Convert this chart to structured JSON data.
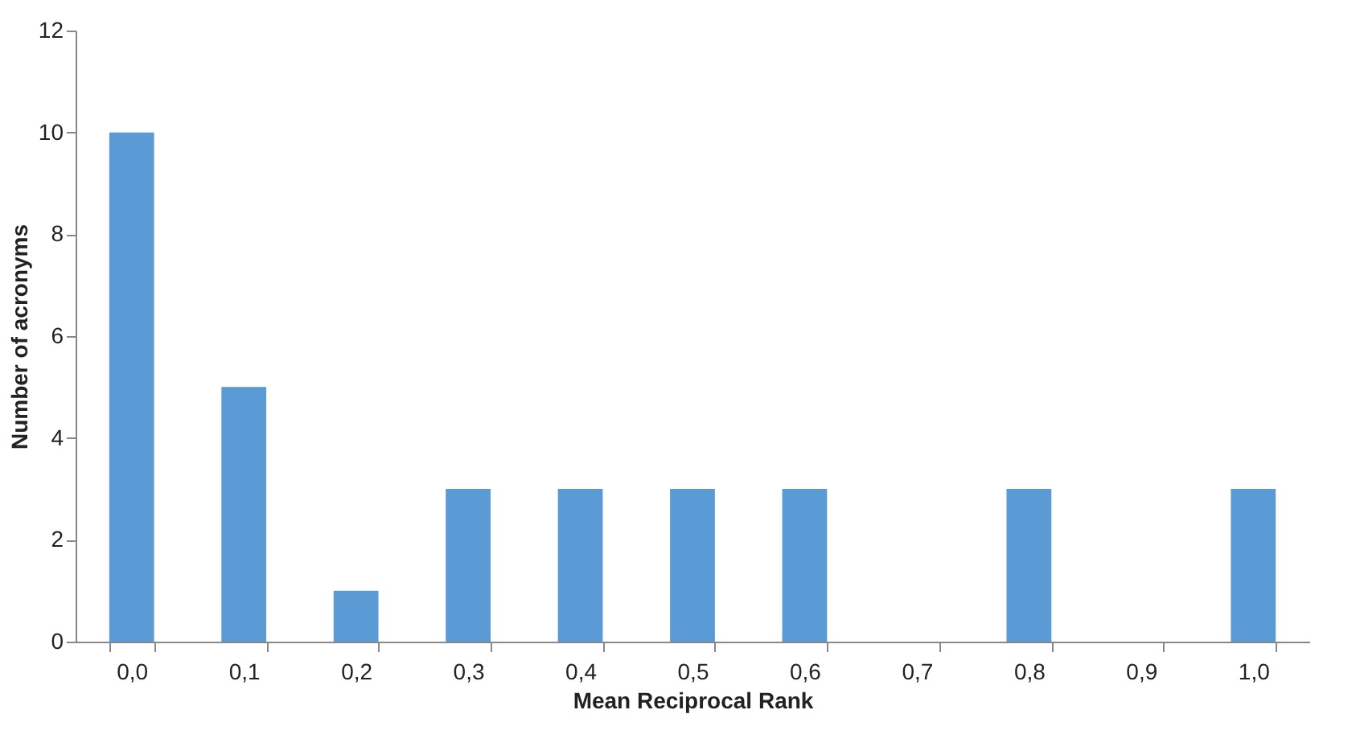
{
  "chart_data": {
    "type": "bar",
    "xlabel": "Mean Reciprocal Rank",
    "ylabel": "Number of acronyms",
    "categories": [
      "0,0",
      "0,1",
      "0,2",
      "0,3",
      "0,4",
      "0,5",
      "0,6",
      "0,7",
      "0,8",
      "0,9",
      "1,0"
    ],
    "values": [
      10,
      5,
      1,
      3,
      3,
      3,
      3,
      0,
      3,
      0,
      3
    ],
    "color": "#5b9bd5",
    "ylim": [
      0,
      12
    ],
    "yticks": [
      0,
      2,
      4,
      6,
      8,
      10,
      12
    ],
    "grid": false
  }
}
